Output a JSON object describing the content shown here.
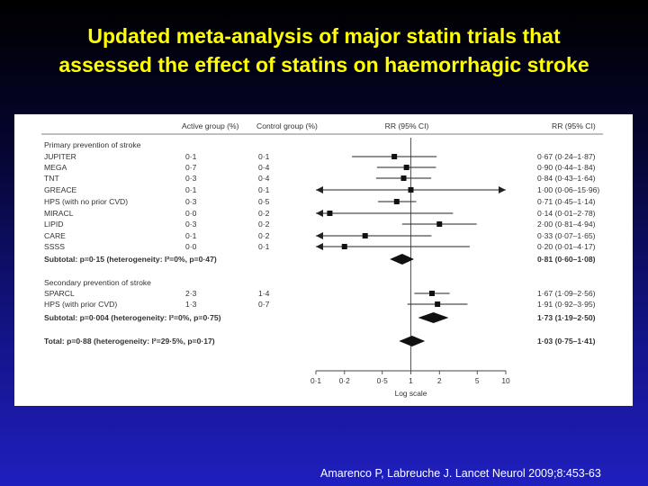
{
  "slide": {
    "title_line1": "Updated meta-analysis of major statin trials that",
    "title_line2": "assessed the effect of statins on haemorrhagic stroke",
    "citation": "Amarenco P, Labreuche J. Lancet Neurol 2009;8:453-63",
    "colors": {
      "title": "#ffff00",
      "background": "#1a1aa8",
      "panel": "#ffffff"
    }
  },
  "chart_data": {
    "type": "forest",
    "headers": {
      "active": "Active group (%)",
      "control": "Control group (%)",
      "rr_plot": "RR (95% CI)",
      "rr_text": "RR (95% CI)"
    },
    "xaxis": {
      "scale": "log",
      "ticks": [
        0.1,
        0.2,
        0.5,
        1,
        2,
        5,
        10
      ],
      "tick_labels": [
        "0·1",
        "0·2",
        "0·5",
        "1",
        "2",
        "5",
        "10"
      ],
      "label": "Log scale",
      "xlim": [
        0.1,
        10
      ],
      "reference_line": 1
    },
    "rows": [
      {
        "kind": "section",
        "label": "Primary prevention of stroke"
      },
      {
        "kind": "study",
        "label": "JUPITER",
        "active": "0·1",
        "control": "0·1",
        "rr": 0.67,
        "lo": 0.24,
        "hi": 1.87,
        "text": "0·67 (0·24–1·87)"
      },
      {
        "kind": "study",
        "label": "MEGA",
        "active": "0·7",
        "control": "0·4",
        "rr": 0.9,
        "lo": 0.44,
        "hi": 1.84,
        "text": "0·90 (0·44–1·84)"
      },
      {
        "kind": "study",
        "label": "TNT",
        "active": "0·3",
        "control": "0·4",
        "rr": 0.84,
        "lo": 0.43,
        "hi": 1.64,
        "text": "0·84 (0·43–1·64)"
      },
      {
        "kind": "study",
        "label": "GREACE",
        "active": "0·1",
        "control": "0·1",
        "rr": 1.0,
        "lo": 0.06,
        "hi": 15.96,
        "text": "1·00 (0·06–15·96)"
      },
      {
        "kind": "study",
        "label": "HPS (with no prior CVD)",
        "active": "0·3",
        "control": "0·5",
        "rr": 0.71,
        "lo": 0.45,
        "hi": 1.14,
        "text": "0·71 (0·45–1·14)"
      },
      {
        "kind": "study",
        "label": "MIRACL",
        "active": "0·0",
        "control": "0·2",
        "rr": 0.14,
        "lo": 0.01,
        "hi": 2.78,
        "text": "0·14 (0·01–2·78)"
      },
      {
        "kind": "study",
        "label": "LIPID",
        "active": "0·3",
        "control": "0·2",
        "rr": 2.0,
        "lo": 0.81,
        "hi": 4.94,
        "text": "2·00 (0·81–4·94)"
      },
      {
        "kind": "study",
        "label": "CARE",
        "active": "0·1",
        "control": "0·2",
        "rr": 0.33,
        "lo": 0.07,
        "hi": 1.65,
        "text": "0·33 (0·07–1·65)"
      },
      {
        "kind": "study",
        "label": "SSSS",
        "active": "0·0",
        "control": "0·1",
        "rr": 0.2,
        "lo": 0.01,
        "hi": 4.17,
        "text": "0·20 (0·01–4·17)"
      },
      {
        "kind": "subtotal",
        "label": "Subtotal: p=0·15 (heterogeneity: I²=0%, p=0·47)",
        "rr": 0.81,
        "lo": 0.6,
        "hi": 1.08,
        "text": "0·81 (0·60–1·08)"
      },
      {
        "kind": "section",
        "label": "Secondary prevention of stroke"
      },
      {
        "kind": "study",
        "label": "SPARCL",
        "active": "2·3",
        "control": "1·4",
        "rr": 1.67,
        "lo": 1.09,
        "hi": 2.56,
        "text": "1·67 (1·09–2·56)"
      },
      {
        "kind": "study",
        "label": "HPS (with prior CVD)",
        "active": "1·3",
        "control": "0·7",
        "rr": 1.91,
        "lo": 0.92,
        "hi": 3.95,
        "text": "1·91 (0·92–3·95)"
      },
      {
        "kind": "subtotal",
        "label": "Subtotal: p=0·004 (heterogeneity: I²=0%, p=0·75)",
        "rr": 1.73,
        "lo": 1.19,
        "hi": 2.5,
        "text": "1·73 (1·19–2·50)"
      },
      {
        "kind": "total",
        "label": "Total: p=0·88 (heterogeneity: I²=29·5%, p=0·17)",
        "rr": 1.03,
        "lo": 0.75,
        "hi": 1.41,
        "text": "1·03 (0·75–1·41)"
      }
    ]
  }
}
